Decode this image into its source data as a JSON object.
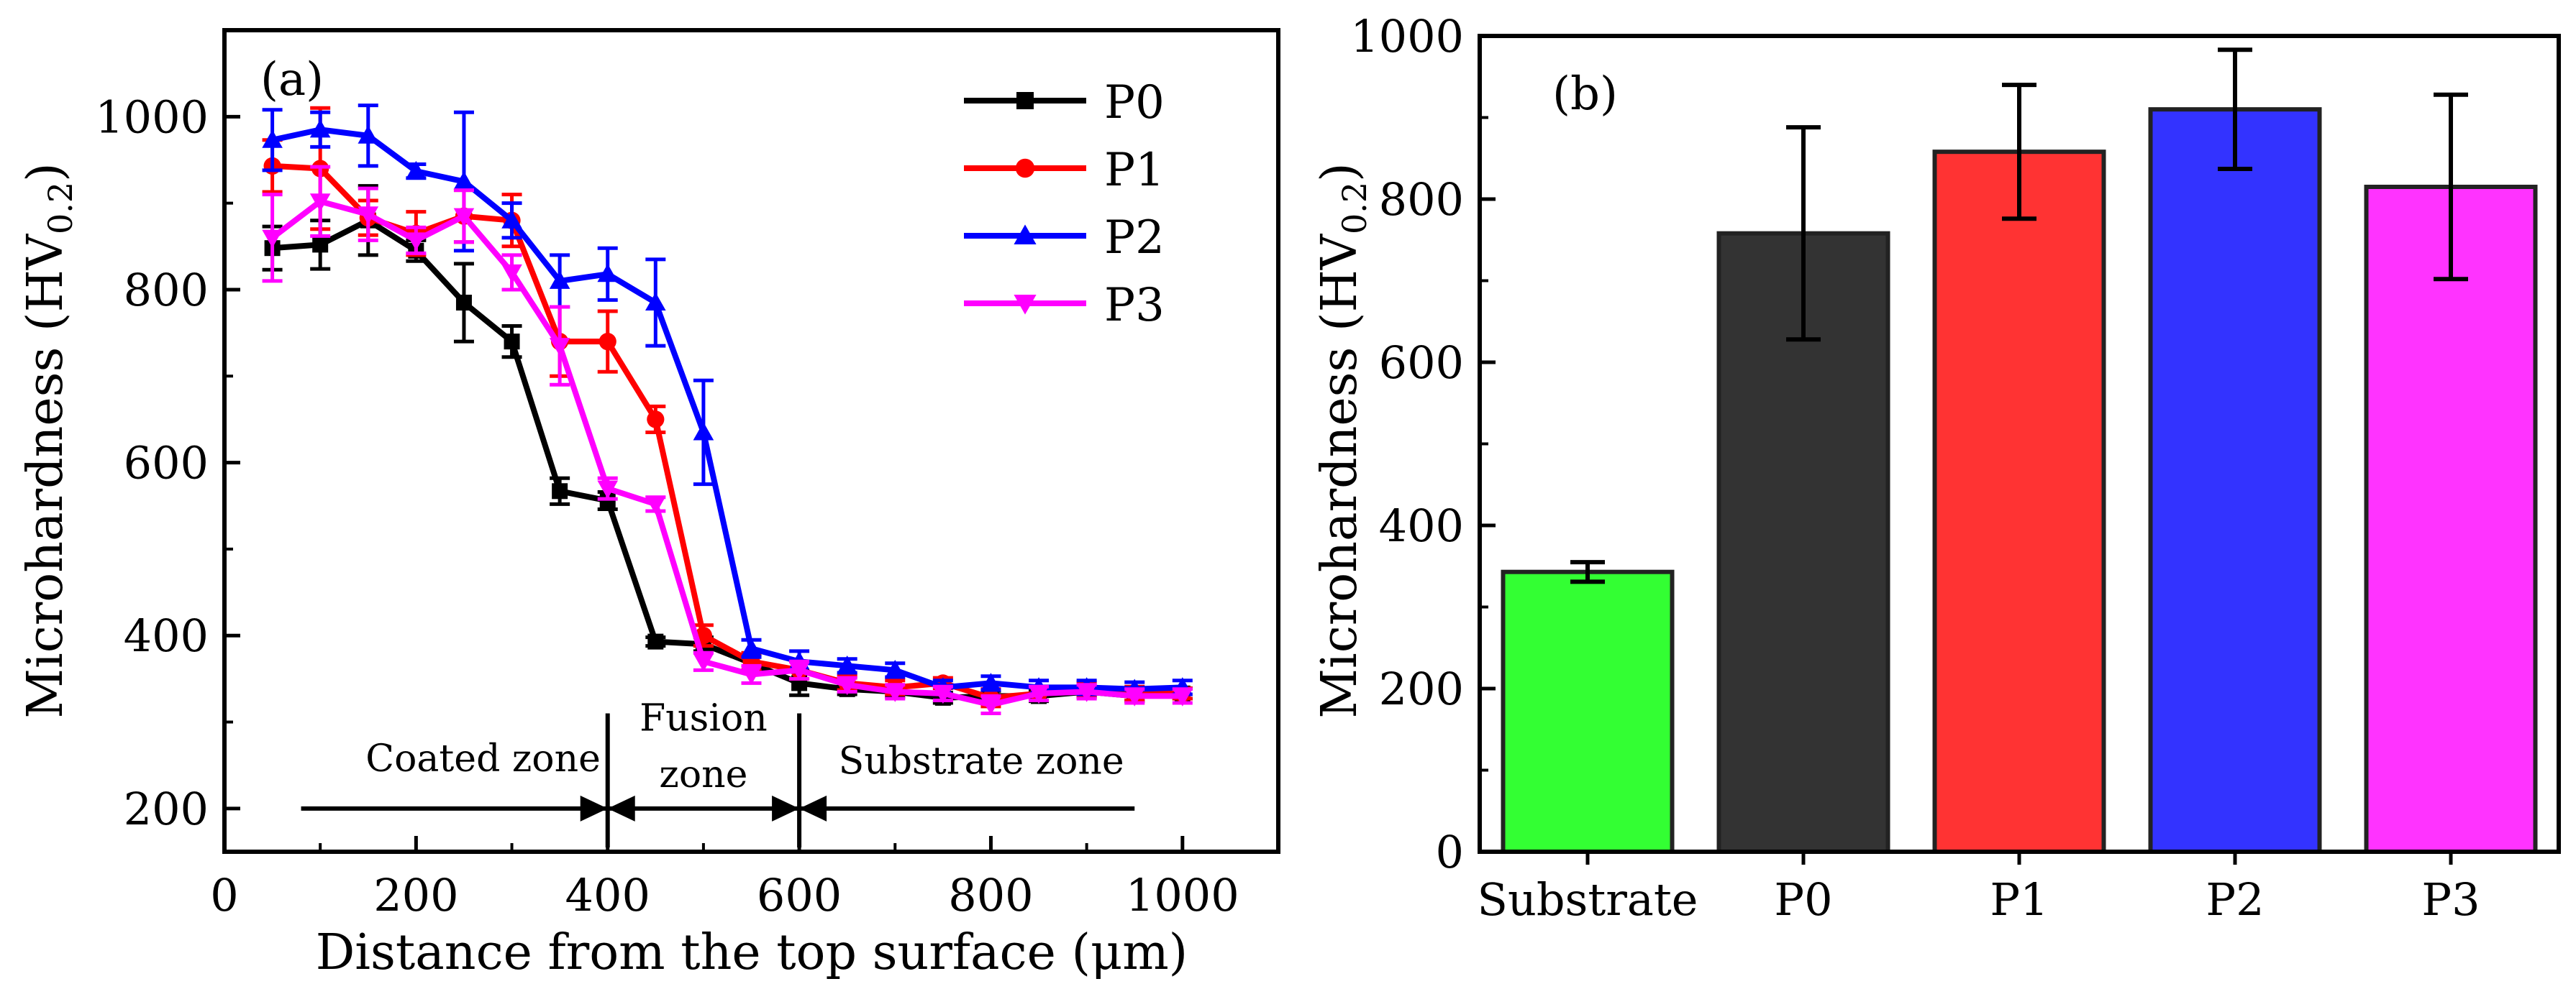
{
  "chart_data": [
    {
      "panel": "(a)",
      "type": "line",
      "xlabel": "Distance from the top surface (μm)",
      "ylabel": "Microhardness (HV",
      "ylabel_sub": "0.2",
      "ylabel_close": ")",
      "xlim": [
        0,
        1100
      ],
      "ylim": [
        150,
        1100
      ],
      "xticks": [
        0,
        200,
        400,
        600,
        800,
        1000
      ],
      "yticks": [
        200,
        400,
        600,
        800,
        1000
      ],
      "x": [
        50,
        100,
        150,
        200,
        250,
        300,
        350,
        400,
        450,
        500,
        550,
        600,
        650,
        700,
        750,
        800,
        850,
        900,
        950,
        1000
      ],
      "series": [
        {
          "name": "P0",
          "color": "#000000",
          "marker": "square",
          "values": [
            848,
            852,
            880,
            845,
            785,
            740,
            567,
            556,
            393,
            390,
            368,
            345,
            338,
            335,
            328,
            330,
            330,
            335,
            330,
            333
          ],
          "errors": [
            25,
            28,
            40,
            12,
            45,
            18,
            15,
            10,
            5,
            8,
            8,
            14,
            6,
            6,
            6,
            6,
            6,
            6,
            6,
            6
          ]
        },
        {
          "name": "P1",
          "color": "#ff0000",
          "marker": "circle",
          "values": [
            943,
            940,
            883,
            865,
            885,
            880,
            740,
            740,
            650,
            400,
            370,
            360,
            345,
            340,
            345,
            328,
            333,
            338,
            333,
            333
          ],
          "errors": [
            30,
            70,
            20,
            25,
            30,
            30,
            40,
            35,
            15,
            12,
            10,
            10,
            8,
            8,
            6,
            10,
            8,
            8,
            8,
            6
          ]
        },
        {
          "name": "P2",
          "color": "#0000ff",
          "marker": "triangle-up",
          "values": [
            973,
            985,
            978,
            937,
            925,
            880,
            810,
            818,
            785,
            635,
            385,
            370,
            365,
            360,
            340,
            345,
            340,
            340,
            338,
            340
          ],
          "errors": [
            35,
            20,
            35,
            8,
            80,
            20,
            30,
            30,
            50,
            60,
            10,
            12,
            8,
            8,
            8,
            8,
            8,
            8,
            8,
            8
          ]
        },
        {
          "name": "P3",
          "color": "#ff00ff",
          "marker": "triangle-down",
          "values": [
            860,
            902,
            887,
            857,
            885,
            820,
            735,
            570,
            552,
            370,
            355,
            360,
            343,
            335,
            333,
            320,
            333,
            335,
            330,
            330
          ],
          "errors": [
            50,
            40,
            30,
            15,
            30,
            20,
            45,
            12,
            8,
            10,
            10,
            10,
            8,
            8,
            8,
            10,
            8,
            8,
            8,
            8
          ]
        }
      ],
      "zones": [
        {
          "label": "Coated zone",
          "from": 80,
          "to": 400
        },
        {
          "label": "Fusion",
          "label2": "zone",
          "from": 400,
          "to": 600
        },
        {
          "label": "Substrate zone",
          "from": 600,
          "to": 950
        }
      ],
      "zone_y": 200,
      "legend": "top-right"
    },
    {
      "panel": "(b)",
      "type": "bar",
      "xlabel": "",
      "ylabel": "Microhardness (HV",
      "ylabel_sub": "0.2",
      "ylabel_close": ")",
      "ylim": [
        0,
        1000
      ],
      "yticks": [
        0,
        200,
        400,
        600,
        800,
        1000
      ],
      "categories": [
        "Substrate",
        "P0",
        "P1",
        "P2",
        "P3"
      ],
      "values": [
        343,
        758,
        858,
        910,
        815
      ],
      "errors": [
        12,
        130,
        82,
        73,
        113
      ],
      "colors": [
        "#33ff33",
        "#333333",
        "#ff3333",
        "#3333ff",
        "#ff33ff"
      ]
    }
  ]
}
